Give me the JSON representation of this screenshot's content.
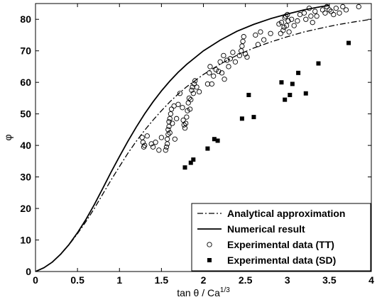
{
  "chart_data": {
    "type": "scatter",
    "xlabel_main": "tan θ / Ca",
    "xlabel_sup": "1/3",
    "ylabel": "φ",
    "xlim": [
      0,
      4
    ],
    "ylim": [
      0,
      85
    ],
    "xticks": [
      0,
      0.5,
      1,
      1.5,
      2,
      2.5,
      3,
      3.5,
      4
    ],
    "xtick_labels": [
      "0",
      "0.5",
      "1",
      "1.5",
      "2",
      "2.5",
      "3",
      "3.5",
      "4"
    ],
    "yticks": [
      0,
      10,
      20,
      30,
      40,
      50,
      60,
      70,
      80
    ],
    "ytick_labels": [
      "0",
      "10",
      "20",
      "30",
      "40",
      "50",
      "60",
      "70",
      "80"
    ],
    "legend_position": "bottom-right",
    "series": [
      {
        "name": "Analytical approximation",
        "style": "dash-dot",
        "points": [
          [
            0,
            0
          ],
          [
            0.1,
            1.2
          ],
          [
            0.2,
            3
          ],
          [
            0.3,
            5.5
          ],
          [
            0.4,
            8.5
          ],
          [
            0.5,
            12
          ],
          [
            0.6,
            15.8
          ],
          [
            0.7,
            20
          ],
          [
            0.8,
            24.5
          ],
          [
            0.9,
            29
          ],
          [
            1.0,
            33.3
          ],
          [
            1.1,
            37.5
          ],
          [
            1.2,
            41.3
          ],
          [
            1.3,
            44.8
          ],
          [
            1.4,
            48
          ],
          [
            1.5,
            51
          ],
          [
            1.6,
            53.8
          ],
          [
            1.7,
            56.3
          ],
          [
            1.8,
            58.6
          ],
          [
            2.0,
            62.5
          ],
          [
            2.2,
            65.8
          ],
          [
            2.4,
            68.6
          ],
          [
            2.6,
            70.9
          ],
          [
            2.8,
            72.8
          ],
          [
            3.0,
            74.5
          ],
          [
            3.2,
            76
          ],
          [
            3.4,
            77.2
          ],
          [
            3.6,
            78.3
          ],
          [
            3.8,
            79.2
          ],
          [
            4.0,
            80
          ]
        ]
      },
      {
        "name": "Numerical result",
        "style": "solid",
        "points": [
          [
            0,
            0
          ],
          [
            0.1,
            1.2
          ],
          [
            0.2,
            3
          ],
          [
            0.3,
            5.5
          ],
          [
            0.4,
            8.6
          ],
          [
            0.5,
            12.3
          ],
          [
            0.6,
            16.5
          ],
          [
            0.7,
            21.2
          ],
          [
            0.8,
            26.3
          ],
          [
            0.9,
            31.5
          ],
          [
            1.0,
            36.5
          ],
          [
            1.1,
            41.3
          ],
          [
            1.2,
            45.8
          ],
          [
            1.3,
            50
          ],
          [
            1.4,
            53.8
          ],
          [
            1.5,
            57.3
          ],
          [
            1.6,
            60.4
          ],
          [
            1.7,
            63.2
          ],
          [
            1.8,
            65.7
          ],
          [
            2.0,
            70
          ],
          [
            2.2,
            73.4
          ],
          [
            2.4,
            76.2
          ],
          [
            2.6,
            78.4
          ],
          [
            2.8,
            80.2
          ],
          [
            3.0,
            81.7
          ],
          [
            3.2,
            83
          ],
          [
            3.4,
            84
          ],
          [
            3.5,
            84.4
          ]
        ]
      },
      {
        "name": "Experimental data (TT)",
        "style": "open-circle",
        "points": [
          [
            1.27,
            42.5
          ],
          [
            1.28,
            41
          ],
          [
            1.29,
            39.5
          ],
          [
            1.3,
            40
          ],
          [
            1.33,
            43
          ],
          [
            1.38,
            40.5
          ],
          [
            1.4,
            39.5
          ],
          [
            1.43,
            41
          ],
          [
            1.47,
            38.5
          ],
          [
            1.5,
            42.5
          ],
          [
            1.55,
            38.5
          ],
          [
            1.56,
            39.5
          ],
          [
            1.57,
            40.5
          ],
          [
            1.57,
            42
          ],
          [
            1.58,
            43.5
          ],
          [
            1.58,
            45
          ],
          [
            1.59,
            46
          ],
          [
            1.59,
            47.5
          ],
          [
            1.6,
            44
          ],
          [
            1.6,
            48.5
          ],
          [
            1.61,
            50
          ],
          [
            1.62,
            51.5
          ],
          [
            1.63,
            47
          ],
          [
            1.65,
            52.5
          ],
          [
            1.66,
            42
          ],
          [
            1.68,
            48.5
          ],
          [
            1.7,
            53
          ],
          [
            1.72,
            56.5
          ],
          [
            1.75,
            52
          ],
          [
            1.76,
            48
          ],
          [
            1.77,
            46.5
          ],
          [
            1.78,
            45.5
          ],
          [
            1.79,
            47
          ],
          [
            1.8,
            49
          ],
          [
            1.81,
            51
          ],
          [
            1.82,
            53.5
          ],
          [
            1.83,
            55
          ],
          [
            1.84,
            51.5
          ],
          [
            1.85,
            54.5
          ],
          [
            1.86,
            57.5
          ],
          [
            1.87,
            58.5
          ],
          [
            1.88,
            56.5
          ],
          [
            1.89,
            59.5
          ],
          [
            1.9,
            60.5
          ],
          [
            1.92,
            58.5
          ],
          [
            1.95,
            57
          ],
          [
            2.05,
            59.5
          ],
          [
            2.07,
            63
          ],
          [
            2.08,
            65
          ],
          [
            2.1,
            59.5
          ],
          [
            2.12,
            62
          ],
          [
            2.15,
            64
          ],
          [
            2.18,
            63.5
          ],
          [
            2.2,
            66.5
          ],
          [
            2.22,
            63
          ],
          [
            2.24,
            68.5
          ],
          [
            2.25,
            61
          ],
          [
            2.28,
            67
          ],
          [
            2.3,
            65
          ],
          [
            2.32,
            67.5
          ],
          [
            2.35,
            69.5
          ],
          [
            2.38,
            66.5
          ],
          [
            2.43,
            68.5
          ],
          [
            2.45,
            70
          ],
          [
            2.46,
            71.5
          ],
          [
            2.47,
            73
          ],
          [
            2.48,
            74.5
          ],
          [
            2.5,
            69
          ],
          [
            2.52,
            68
          ],
          [
            2.62,
            75
          ],
          [
            2.65,
            72
          ],
          [
            2.68,
            76
          ],
          [
            2.72,
            73.5
          ],
          [
            2.8,
            75.5
          ],
          [
            2.9,
            78.5
          ],
          [
            2.92,
            75.5
          ],
          [
            2.93,
            79
          ],
          [
            2.95,
            76.5
          ],
          [
            2.96,
            77.5
          ],
          [
            2.97,
            80.5
          ],
          [
            2.98,
            81
          ],
          [
            2.99,
            78
          ],
          [
            3.0,
            81.5
          ],
          [
            3.01,
            79.5
          ],
          [
            3.02,
            76
          ],
          [
            3.05,
            80
          ],
          [
            3.08,
            78
          ],
          [
            3.12,
            79.5
          ],
          [
            3.15,
            81.5
          ],
          [
            3.2,
            82
          ],
          [
            3.22,
            80
          ],
          [
            3.26,
            83.5
          ],
          [
            3.28,
            81
          ],
          [
            3.3,
            79
          ],
          [
            3.33,
            82.5
          ],
          [
            3.35,
            81
          ],
          [
            3.42,
            83
          ],
          [
            3.45,
            82
          ],
          [
            3.47,
            84
          ],
          [
            3.5,
            83
          ],
          [
            3.52,
            82.5
          ],
          [
            3.55,
            81.5
          ],
          [
            3.58,
            83.5
          ],
          [
            3.62,
            82
          ],
          [
            3.66,
            84
          ],
          [
            3.7,
            83
          ],
          [
            3.85,
            84
          ]
        ]
      },
      {
        "name": "Experimental data (SD)",
        "style": "filled-square",
        "points": [
          [
            1.78,
            33
          ],
          [
            1.85,
            34.5
          ],
          [
            1.88,
            35.5
          ],
          [
            2.05,
            39
          ],
          [
            2.13,
            42
          ],
          [
            2.17,
            41.5
          ],
          [
            2.46,
            48.5
          ],
          [
            2.54,
            56
          ],
          [
            2.6,
            49
          ],
          [
            2.93,
            60
          ],
          [
            2.97,
            54.5
          ],
          [
            3.03,
            56
          ],
          [
            3.06,
            59.5
          ],
          [
            3.13,
            63
          ],
          [
            3.22,
            56.5
          ],
          [
            3.37,
            66
          ],
          [
            3.73,
            72.5
          ]
        ]
      }
    ]
  }
}
